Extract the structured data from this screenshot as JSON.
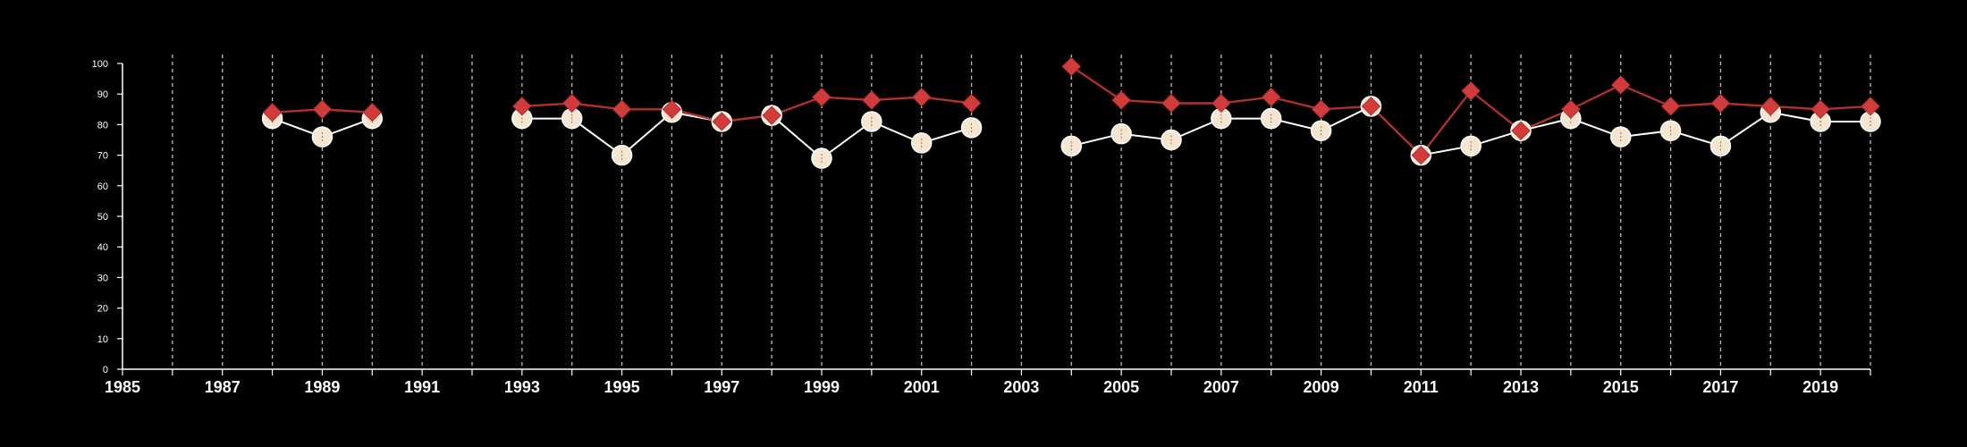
{
  "chart_data": {
    "type": "line",
    "title": "",
    "xlabel": "",
    "ylabel": "",
    "xlim": [
      1985,
      2020
    ],
    "ylim": [
      0,
      100
    ],
    "x_ticks": [
      1985,
      1987,
      1989,
      1991,
      1993,
      1995,
      1997,
      1999,
      2001,
      2003,
      2005,
      2007,
      2009,
      2011,
      2013,
      2015,
      2017,
      2019
    ],
    "y_ticks": [
      0,
      10,
      20,
      30,
      40,
      50,
      60,
      70,
      80,
      90,
      100
    ],
    "x_tick_labels": [
      "1985",
      "1987",
      "1989",
      "1991",
      "1993",
      "1995",
      "1997",
      "1999",
      "2001",
      "2003",
      "2005",
      "2007",
      "2009",
      "2011",
      "2013",
      "2015",
      "2017",
      "2019"
    ],
    "y_tick_labels": [
      "0",
      "10",
      "20",
      "30",
      "40",
      "50",
      "60",
      "70",
      "80",
      "90",
      "100"
    ],
    "vertical_grid": "dashed, every year",
    "colors": {
      "background": "#000000",
      "axis": "#ffffff",
      "grid": "#bfbfbf",
      "series_circle_fill": "#f6e6d0",
      "series_circle_line": "#ffffff",
      "series_diamond": "#d13b3b",
      "series_diamond_line": "#b03030"
    },
    "series": [
      {
        "marker": "circle",
        "points": [
          [
            1988,
            82
          ],
          [
            1989,
            76
          ],
          [
            1990,
            82
          ],
          [
            1993,
            82
          ],
          [
            1994,
            82
          ],
          [
            1995,
            70
          ],
          [
            1996,
            84
          ],
          [
            1997,
            81
          ],
          [
            1998,
            83
          ],
          [
            1999,
            69
          ],
          [
            2000,
            81
          ],
          [
            2001,
            74
          ],
          [
            2002,
            79
          ],
          [
            2004,
            73
          ],
          [
            2005,
            77
          ],
          [
            2006,
            75
          ],
          [
            2007,
            82
          ],
          [
            2008,
            82
          ],
          [
            2009,
            78
          ],
          [
            2010,
            86
          ],
          [
            2011,
            70
          ],
          [
            2012,
            73
          ],
          [
            2013,
            78
          ],
          [
            2014,
            82
          ],
          [
            2015,
            76
          ],
          [
            2016,
            78
          ],
          [
            2017,
            73
          ],
          [
            2018,
            84
          ],
          [
            2019,
            81
          ],
          [
            2020,
            81
          ]
        ]
      },
      {
        "marker": "diamond",
        "points": [
          [
            1988,
            84
          ],
          [
            1989,
            85
          ],
          [
            1990,
            84
          ],
          [
            1993,
            86
          ],
          [
            1994,
            87
          ],
          [
            1995,
            85
          ],
          [
            1996,
            85
          ],
          [
            1997,
            81
          ],
          [
            1998,
            83
          ],
          [
            1999,
            89
          ],
          [
            2000,
            88
          ],
          [
            2001,
            89
          ],
          [
            2002,
            87
          ],
          [
            2004,
            99
          ],
          [
            2005,
            88
          ],
          [
            2006,
            87
          ],
          [
            2007,
            87
          ],
          [
            2008,
            89
          ],
          [
            2009,
            85
          ],
          [
            2010,
            86
          ],
          [
            2011,
            70
          ],
          [
            2012,
            91
          ],
          [
            2013,
            78
          ],
          [
            2014,
            85
          ],
          [
            2015,
            93
          ],
          [
            2016,
            86
          ],
          [
            2017,
            87
          ],
          [
            2018,
            86
          ],
          [
            2019,
            85
          ],
          [
            2020,
            86
          ]
        ]
      }
    ]
  }
}
